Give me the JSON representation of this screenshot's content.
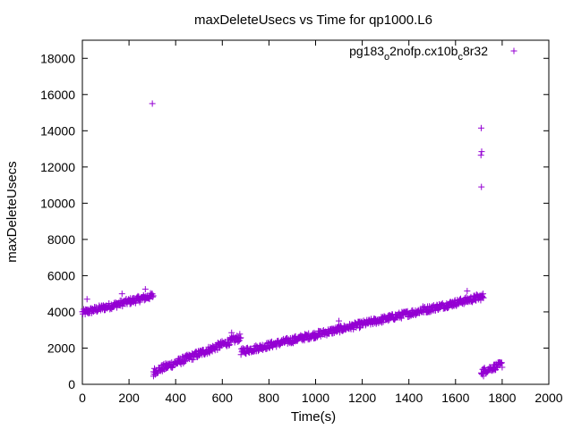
{
  "chart_data": {
    "type": "scatter",
    "title": "maxDeleteUsecs vs Time for qp1000.L6",
    "xlabel": "Time(s)",
    "ylabel": "maxDeleteUsecs",
    "xlim": [
      0,
      2000
    ],
    "ylim": [
      0,
      19000
    ],
    "xticks": [
      0,
      200,
      400,
      600,
      800,
      1000,
      1200,
      1400,
      1600,
      1800,
      2000
    ],
    "yticks": [
      0,
      2000,
      4000,
      6000,
      8000,
      10000,
      12000,
      14000,
      16000,
      18000
    ],
    "grid": false,
    "legend_position": "top-right",
    "marker": "+",
    "series": [
      {
        "name_parts": [
          "pg183",
          "o",
          "2nofp.cx10b",
          "c",
          "8r32"
        ],
        "color": "#9400d3",
        "segments": [
          {
            "x_start": 0,
            "x_end": 305,
            "y_start": 3950,
            "y_end": 4900,
            "jitter": 180
          },
          {
            "x_start": 305,
            "x_end": 680,
            "y_start": 700,
            "y_end": 2600,
            "jitter": 200
          },
          {
            "x_start": 680,
            "x_end": 1720,
            "y_start": 1800,
            "y_end": 4850,
            "jitter": 180
          },
          {
            "x_start": 1710,
            "x_end": 1800,
            "y_start": 700,
            "y_end": 1100,
            "jitter": 180
          }
        ],
        "outliers": [
          {
            "x": 300,
            "y": 15500
          },
          {
            "x": 1710,
            "y": 14150
          },
          {
            "x": 1712,
            "y": 12850
          },
          {
            "x": 1709,
            "y": 12650
          },
          {
            "x": 1711,
            "y": 10900
          },
          {
            "x": 170,
            "y": 5000
          },
          {
            "x": 270,
            "y": 5250
          },
          {
            "x": 20,
            "y": 4700
          },
          {
            "x": 1650,
            "y": 5150
          },
          {
            "x": 1690,
            "y": 4950
          },
          {
            "x": 305,
            "y": 450
          },
          {
            "x": 1720,
            "y": 450
          },
          {
            "x": 640,
            "y": 2850
          },
          {
            "x": 1100,
            "y": 3500
          },
          {
            "x": 1460,
            "y": 4300
          }
        ]
      }
    ]
  }
}
